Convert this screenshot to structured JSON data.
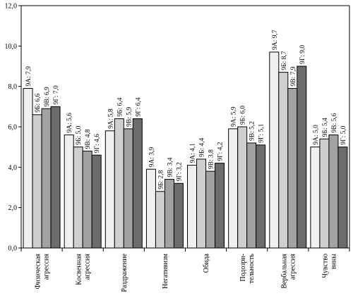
{
  "chart_data": {
    "type": "bar",
    "categories": [
      [
        "Физическая",
        "агрессия"
      ],
      [
        "Косвенная",
        "агрессия"
      ],
      [
        "Раздражение"
      ],
      [
        "Негативизм"
      ],
      [
        "Обида"
      ],
      [
        "Подозри-",
        "тельность"
      ],
      [
        "Вербальная",
        "агрессия"
      ],
      [
        "Чувство",
        "вины"
      ]
    ],
    "series": [
      {
        "name": "9А",
        "color": "#f0f0f0",
        "values": [
          7.9,
          5.6,
          5.8,
          3.9,
          4.1,
          5.9,
          9.7,
          5.0
        ]
      },
      {
        "name": "9Б",
        "color": "#cfcfcf",
        "values": [
          6.6,
          5.0,
          6.4,
          2.8,
          4.4,
          6.0,
          8.7,
          5.4
        ]
      },
      {
        "name": "9В",
        "color": "#a2a2a2",
        "values": [
          6.9,
          4.8,
          5.9,
          3.4,
          3.8,
          5.2,
          7.9,
          5.6
        ]
      },
      {
        "name": "9Г",
        "color": "#6c6c6c",
        "values": [
          7.0,
          4.6,
          6.4,
          3.2,
          4.2,
          5.1,
          9.0,
          5.0
        ]
      }
    ],
    "data_labels": [
      [
        "9А: 7,9",
        "9Б: 6,6",
        "9В: 6,9",
        "9Г: 7,0"
      ],
      [
        "9А: 5,6",
        "9Б: 5,0",
        "9В: 4,8",
        "9Г: 4,6"
      ],
      [
        "9А: 5,8",
        "9Б: 6,4",
        "9В: 5,9",
        "9Г: 6,4"
      ],
      [
        "9А: 3,9",
        "9Б: 2,8",
        "9В: 3,4",
        "9Г: 3,2"
      ],
      [
        "9А: 4,1",
        "9Б: 4,4",
        "9В: 3,8",
        "9Г: 4,2"
      ],
      [
        "9А: 5,9",
        "9Б: 6,0",
        "9В: 5,2",
        "9Г: 5,1"
      ],
      [
        "9А: 9,7",
        "9Б: 8,7",
        "9В: 7,9",
        "9Г: 9,0"
      ],
      [
        "9А: 5,0",
        "9Б: 5,4",
        "9В: 5,6",
        "9Г: 5,0"
      ]
    ],
    "y_ticks": [
      "0,0",
      "2,0",
      "4,0",
      "6,0",
      "8,0",
      "10,0",
      "12,0"
    ],
    "ylim": [
      0,
      12
    ],
    "grid": false,
    "title": "",
    "xlabel": "",
    "ylabel": ""
  }
}
